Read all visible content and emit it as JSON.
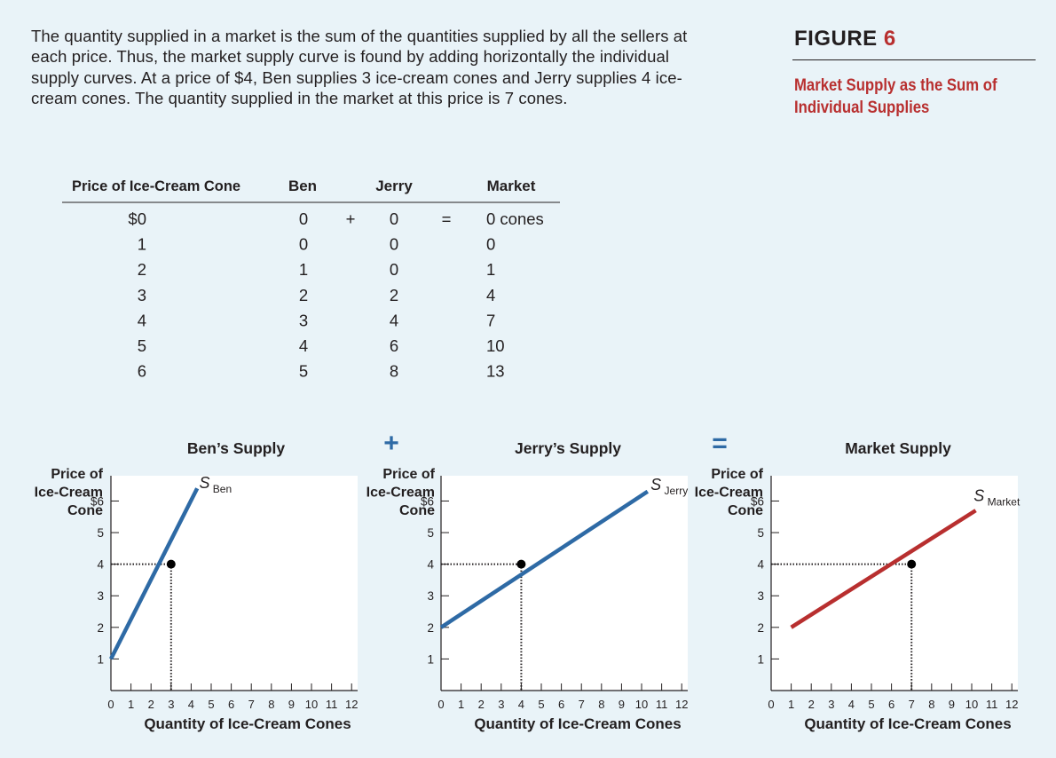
{
  "caption": "The quantity supplied in a market is the sum of the quantities supplied by all the sellers at each price. Thus, the market supply curve is found by adding horizontally the individual supply curves. At a price of $4, Ben supplies 3 ice-cream cones and Jerry supplies 4 ice-cream cones. The quantity supplied in the market at this price is 7 cones.",
  "figure": {
    "label": "FIGURE",
    "number": "6",
    "title": "Market Supply as the Sum of Individual Supplies"
  },
  "colors": {
    "background": "#e9f3f8",
    "ben": "#2e6aa5",
    "jerry": "#2e6aa5",
    "market": "#b82f2f",
    "figure_red": "#b82f2f",
    "text": "#231f20"
  },
  "table": {
    "headers": {
      "price": "Price of Ice-Cream Cone",
      "ben": "Ben",
      "jerry": "Jerry",
      "market": "Market"
    },
    "plus": "+",
    "equals": "=",
    "rows": [
      {
        "price": "$0",
        "ben": "0",
        "jerry": "0",
        "market": "0 cones"
      },
      {
        "price": "1",
        "ben": "0",
        "jerry": "0",
        "market": "0"
      },
      {
        "price": "2",
        "ben": "1",
        "jerry": "0",
        "market": "1"
      },
      {
        "price": "3",
        "ben": "2",
        "jerry": "2",
        "market": "4"
      },
      {
        "price": "4",
        "ben": "3",
        "jerry": "4",
        "market": "7"
      },
      {
        "price": "5",
        "ben": "4",
        "jerry": "6",
        "market": "10"
      },
      {
        "price": "6",
        "ben": "5",
        "jerry": "8",
        "market": "13"
      }
    ]
  },
  "operators": {
    "plus": "+",
    "equals": "="
  },
  "chart_data": [
    {
      "id": "ben",
      "type": "line",
      "title": "Ben’s Supply",
      "ylabel": [
        "Price of",
        "Ice-Cream",
        "Cone"
      ],
      "xlabel": "Quantity of Ice-Cream Cones",
      "xlim": [
        0,
        12.3
      ],
      "ylim": [
        0,
        6.8
      ],
      "xticks": [
        "0",
        "1",
        "2",
        "3",
        "4",
        "5",
        "6",
        "7",
        "8",
        "9",
        "10",
        "11",
        "12"
      ],
      "yticks": [
        "1",
        "2",
        "3",
        "4",
        "5",
        "$6"
      ],
      "series": [
        {
          "name": "S",
          "sub": "Ben",
          "color": "#2e6aa5",
          "x": [
            0,
            4.3
          ],
          "y": [
            1,
            6.4
          ]
        }
      ],
      "curve_label_at": [
        4.4,
        6.4
      ],
      "highlight": {
        "x": 3,
        "y": 4
      },
      "grid": false
    },
    {
      "id": "jerry",
      "type": "line",
      "title": "Jerry’s Supply",
      "ylabel": [
        "Price of",
        "Ice-Cream",
        "Cone"
      ],
      "xlabel": "Quantity of Ice-Cream Cones",
      "xlim": [
        0,
        12.3
      ],
      "ylim": [
        0,
        6.8
      ],
      "xticks": [
        "0",
        "1",
        "2",
        "3",
        "4",
        "5",
        "6",
        "7",
        "8",
        "9",
        "10",
        "11",
        "12"
      ],
      "yticks": [
        "1",
        "2",
        "3",
        "4",
        "5",
        "$6"
      ],
      "series": [
        {
          "name": "S",
          "sub": "Jerry",
          "color": "#2e6aa5",
          "x": [
            0,
            10.3
          ],
          "y": [
            2,
            6.3
          ]
        }
      ],
      "curve_label_at": [
        10.45,
        6.35
      ],
      "highlight": {
        "x": 4,
        "y": 4
      },
      "grid": false
    },
    {
      "id": "market",
      "type": "line",
      "title": "Market Supply",
      "ylabel": [
        "Price of",
        "Ice-Cream",
        "Cone"
      ],
      "xlabel": "Quantity of Ice-Cream Cones",
      "xlim": [
        0,
        12.3
      ],
      "ylim": [
        0,
        6.8
      ],
      "xticks": [
        "0",
        "1",
        "2",
        "3",
        "4",
        "5",
        "6",
        "7",
        "8",
        "9",
        "10",
        "11",
        "12"
      ],
      "yticks": [
        "1",
        "2",
        "3",
        "4",
        "5",
        "$6"
      ],
      "series": [
        {
          "name": "S",
          "sub": "Market",
          "color": "#b82f2f",
          "x": [
            1,
            10.2
          ],
          "y": [
            2,
            5.7
          ]
        }
      ],
      "curve_label_at": [
        10.1,
        6.0
      ],
      "highlight": {
        "x": 7,
        "y": 4
      },
      "grid": false
    }
  ]
}
